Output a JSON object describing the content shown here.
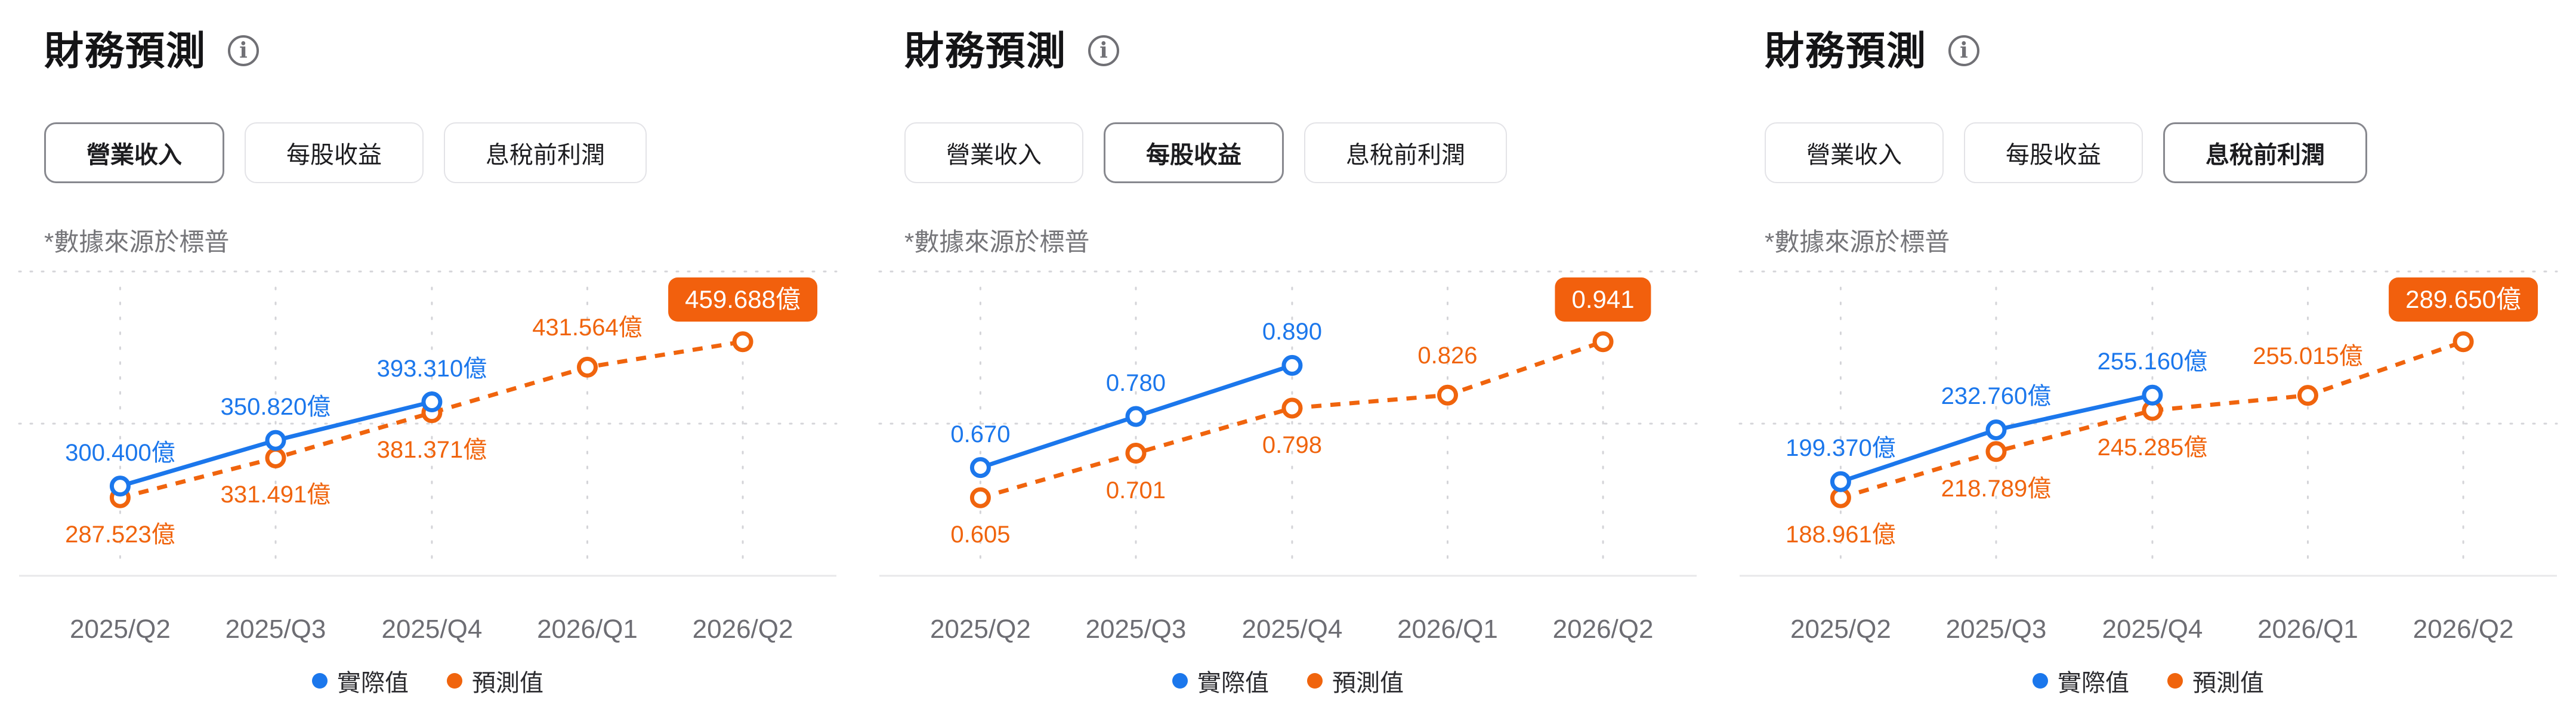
{
  "colors": {
    "actual_blue": "#1B77EC",
    "forecast_orange": "#F0640D",
    "badge_bg": "#F2600D",
    "grid": "#d4d4d8",
    "axis": "#e8e8ea"
  },
  "panels": [
    {
      "title": "財務預測",
      "info_icon": "info",
      "note": "*數據來源於標普",
      "tabs": [
        {
          "label": "營業收入",
          "selected": true
        },
        {
          "label": "每股收益",
          "selected": false
        },
        {
          "label": "息稅前利潤",
          "selected": false
        }
      ]
    },
    {
      "title": "財務預測",
      "info_icon": "info",
      "note": "*數據來源於標普",
      "tabs": [
        {
          "label": "營業收入",
          "selected": false
        },
        {
          "label": "每股收益",
          "selected": true
        },
        {
          "label": "息稅前利潤",
          "selected": false
        }
      ]
    },
    {
      "title": "財務預測",
      "info_icon": "info",
      "note": "*數據來源於標普",
      "tabs": [
        {
          "label": "營業收入",
          "selected": false
        },
        {
          "label": "每股收益",
          "selected": false
        },
        {
          "label": "息稅前利潤",
          "selected": true
        }
      ]
    }
  ],
  "chart_data": [
    {
      "type": "line",
      "title": "營業收入",
      "categories": [
        "2025/Q2",
        "2025/Q3",
        "2025/Q4",
        "2026/Q1",
        "2026/Q2"
      ],
      "series": [
        {
          "name": "實際值",
          "style": "solid",
          "values": [
            300.4,
            350.82,
            393.31
          ],
          "value_labels": [
            "300.400億",
            "350.820億",
            "393.310億"
          ]
        },
        {
          "name": "預測值",
          "style": "dashed",
          "values": [
            287.523,
            331.491,
            381.371,
            431.564,
            459.688
          ],
          "value_labels": [
            "287.523億",
            "331.491億",
            "381.371億",
            "431.564億",
            "459.688億"
          ]
        }
      ],
      "legend_position": "bottom",
      "grid": "dotted"
    },
    {
      "type": "line",
      "title": "每股收益",
      "categories": [
        "2025/Q2",
        "2025/Q3",
        "2025/Q4",
        "2026/Q1",
        "2026/Q2"
      ],
      "series": [
        {
          "name": "實際值",
          "style": "solid",
          "values": [
            0.67,
            0.78,
            0.89
          ],
          "value_labels": [
            "0.670",
            "0.780",
            "0.890"
          ]
        },
        {
          "name": "預測值",
          "style": "dashed",
          "values": [
            0.605,
            0.701,
            0.798,
            0.826,
            0.941
          ],
          "value_labels": [
            "0.605",
            "0.701",
            "0.798",
            "0.826",
            "0.941"
          ]
        }
      ],
      "legend_position": "bottom",
      "grid": "dotted"
    },
    {
      "type": "line",
      "title": "息稅前利潤",
      "categories": [
        "2025/Q2",
        "2025/Q3",
        "2025/Q4",
        "2026/Q1",
        "2026/Q2"
      ],
      "series": [
        {
          "name": "實際值",
          "style": "solid",
          "values": [
            199.37,
            232.76,
            255.16
          ],
          "value_labels": [
            "199.370億",
            "232.760億",
            "255.160億"
          ]
        },
        {
          "name": "預測值",
          "style": "dashed",
          "values": [
            188.961,
            218.789,
            245.285,
            255.015,
            289.65
          ],
          "value_labels": [
            "188.961億",
            "218.789億",
            "245.285億",
            "255.015億",
            "289.650億"
          ]
        }
      ],
      "legend_position": "bottom",
      "grid": "dotted"
    }
  ]
}
